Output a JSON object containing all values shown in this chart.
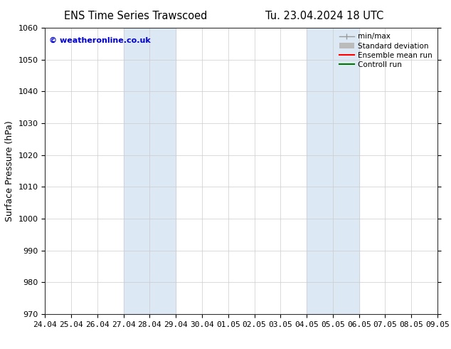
{
  "title_left": "ENS Time Series Trawscoed",
  "title_right": "Tu. 23.04.2024 18 UTC",
  "ylabel": "Surface Pressure (hPa)",
  "ylim": [
    970,
    1060
  ],
  "yticks": [
    970,
    980,
    990,
    1000,
    1010,
    1020,
    1030,
    1040,
    1050,
    1060
  ],
  "xtick_labels": [
    "24.04",
    "25.04",
    "26.04",
    "27.04",
    "28.04",
    "29.04",
    "30.04",
    "01.05",
    "02.05",
    "03.05",
    "04.05",
    "05.05",
    "06.05",
    "07.05",
    "08.05",
    "09.05"
  ],
  "xtick_positions": [
    0,
    1,
    2,
    3,
    4,
    5,
    6,
    7,
    8,
    9,
    10,
    11,
    12,
    13,
    14,
    15
  ],
  "shaded_bands": [
    {
      "x_start": 3,
      "x_end": 5
    },
    {
      "x_start": 10,
      "x_end": 12
    }
  ],
  "shaded_color": "#dce9f5",
  "watermark": "© weatheronline.co.uk",
  "watermark_color": "#0000cc",
  "legend_entries": [
    {
      "label": "min/max",
      "color": "#999999",
      "style": "minmax"
    },
    {
      "label": "Standard deviation",
      "color": "#bbbbbb",
      "style": "stddev"
    },
    {
      "label": "Ensemble mean run",
      "color": "#ff0000",
      "style": "line"
    },
    {
      "label": "Controll run",
      "color": "#007700",
      "style": "line"
    }
  ],
  "background_color": "#ffffff",
  "grid_color": "#cccccc",
  "title_fontsize": 10.5,
  "tick_fontsize": 8,
  "ylabel_fontsize": 9,
  "legend_fontsize": 7.5
}
